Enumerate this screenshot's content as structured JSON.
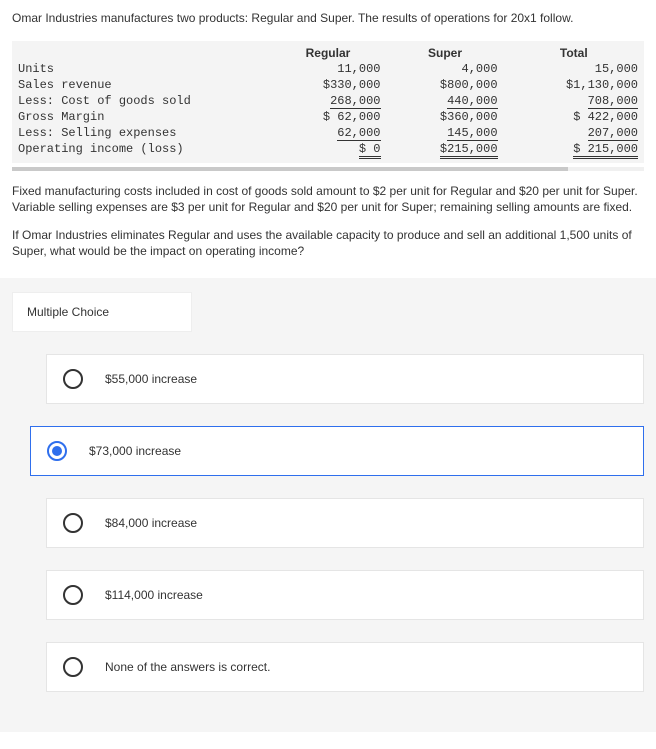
{
  "question": {
    "intro": "Omar Industries manufactures two products: Regular and Super. The results of operations for 20x1 follow.",
    "para2": "Fixed manufacturing costs included in cost of goods sold amount to $2 per unit for Regular and $20 per unit for Super. Variable selling expenses are $3 per unit for Regular and $20 per unit for Super; remaining selling amounts are fixed.",
    "para3": "If Omar Industries eliminates Regular and uses the available capacity to produce and sell an additional 1,500 units of Super, what would be the impact on operating income?"
  },
  "table": {
    "col_headers": [
      "Regular",
      "Super",
      "Total"
    ],
    "rows": [
      {
        "label": "Units",
        "reg": "11,000",
        "sup": "4,000",
        "tot": "15,000",
        "style": "plain"
      },
      {
        "label": "Sales revenue",
        "reg": "$330,000",
        "sup": "$800,000",
        "tot": "$1,130,000",
        "style": "plain"
      },
      {
        "label": "Less: Cost of goods sold",
        "reg": "268,000",
        "sup": "440,000",
        "tot": "708,000",
        "style": "single"
      },
      {
        "label": "Gross Margin",
        "reg": "$ 62,000",
        "sup": "$360,000",
        "tot": "$  422,000",
        "style": "plain"
      },
      {
        "label": "Less: Selling expenses",
        "reg": "62,000",
        "sup": "145,000",
        "tot": "207,000",
        "style": "single"
      },
      {
        "label": "Operating income (loss)",
        "reg": "$      0",
        "sup": "$215,000",
        "tot": "$  215,000",
        "style": "double"
      }
    ]
  },
  "mc": {
    "title": "Multiple Choice",
    "options": [
      {
        "label": "$55,000 increase",
        "selected": false
      },
      {
        "label": "$73,000 increase",
        "selected": true
      },
      {
        "label": "$84,000 increase",
        "selected": false
      },
      {
        "label": "$114,000 increase",
        "selected": false
      },
      {
        "label": "None of the answers is correct.",
        "selected": false
      }
    ]
  }
}
